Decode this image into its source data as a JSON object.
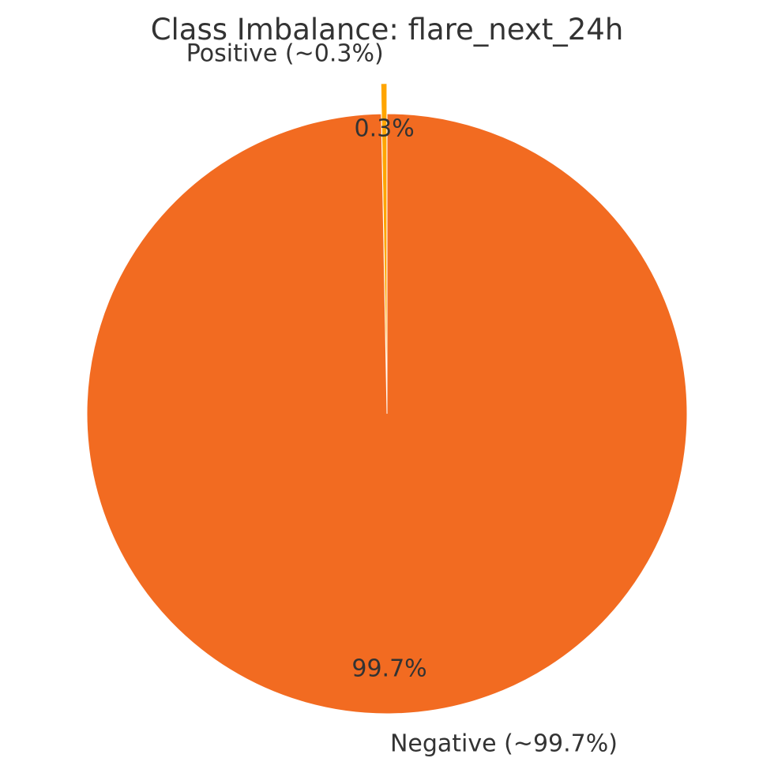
{
  "chart_data": {
    "type": "pie",
    "title": "Class Imbalance: flare_next_24h",
    "slices": [
      {
        "label": "Positive (~0.3%)",
        "value": 0.3,
        "pct_label": "0.3%",
        "color": "#FFA500",
        "exploded": true
      },
      {
        "label": "Negative (~99.7%)",
        "value": 99.7,
        "pct_label": "99.7%",
        "color": "#F26B21",
        "exploded": false
      }
    ],
    "start_angle": "top",
    "direction": "counterclockwise",
    "edge_color": "#ffffff"
  }
}
